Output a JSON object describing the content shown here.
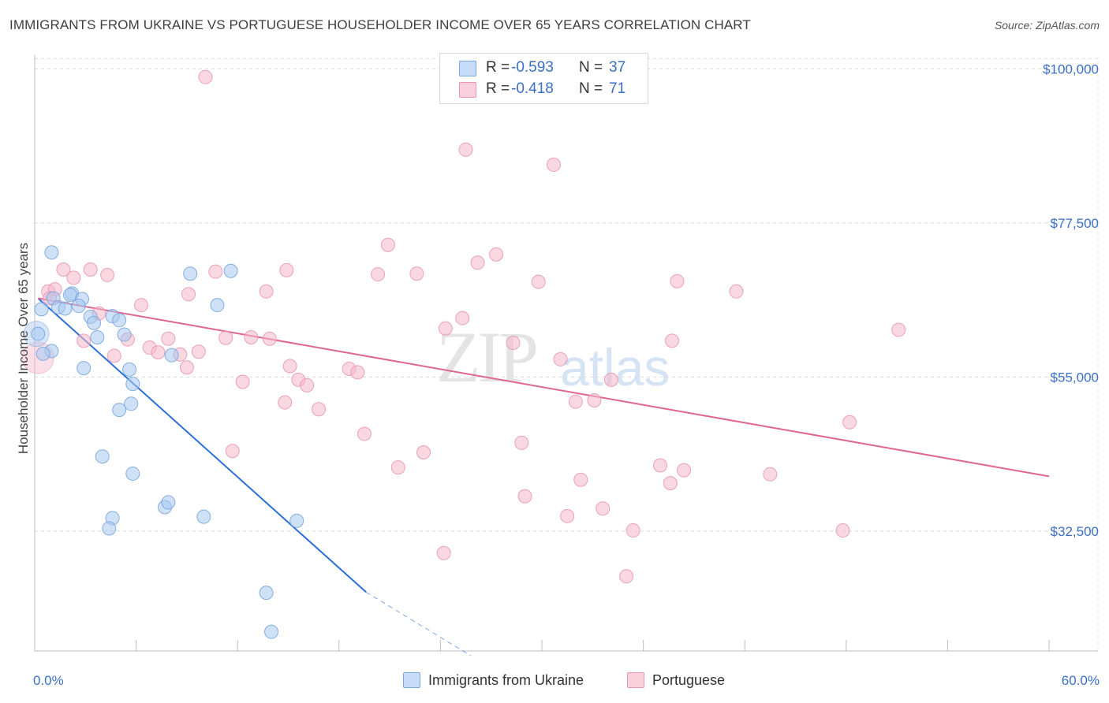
{
  "header": {
    "title": "IMMIGRANTS FROM UKRAINE VS PORTUGUESE HOUSEHOLDER INCOME OVER 65 YEARS CORRELATION CHART",
    "source": "Source: ZipAtlas.com"
  },
  "watermark": {
    "zip": "ZIP",
    "atlas": "atlas"
  },
  "legend": {
    "rows": [
      {
        "r_label": "R =",
        "r_value": "-0.593",
        "n_label": "N =",
        "n_value": "37",
        "color": "#a8c8f0"
      },
      {
        "r_label": "R =",
        "r_value": "-0.418",
        "n_label": "N =",
        "n_value": "71",
        "color": "#f5b8cb"
      }
    ]
  },
  "bottom_legend": {
    "series1": "Immigrants from Ukraine",
    "series2": "Portuguese"
  },
  "chart_data": {
    "type": "scatter",
    "title": "IMMIGRANTS FROM UKRAINE VS PORTUGUESE HOUSEHOLDER INCOME OVER 65 YEARS CORRELATION CHART",
    "xlabel": "",
    "ylabel": "Householder Income Over 65 years",
    "xlim": [
      0,
      60
    ],
    "ylim": [
      15000,
      102000
    ],
    "x_tick_labels": [
      "0.0%",
      "60.0%"
    ],
    "y_ticks": [
      32500,
      55000,
      77500,
      100000
    ],
    "y_tick_labels": [
      "$32,500",
      "$55,000",
      "$77,500",
      "$100,000"
    ],
    "grid": true,
    "series": [
      {
        "name": "Immigrants from Ukraine",
        "color": "#a8c8f0",
        "stroke": "#7aa6de",
        "trend_color": "#2a6fd6",
        "trend": {
          "x0": 0.2,
          "y0": 66500,
          "x1": 19.6,
          "y1": 23600,
          "dash_x1": 25.8,
          "dash_y1": 14300
        },
        "points": [
          {
            "x": 1.0,
            "y": 73200
          },
          {
            "x": 0.4,
            "y": 64900
          },
          {
            "x": 0.2,
            "y": 61300
          },
          {
            "x": 1.1,
            "y": 66500
          },
          {
            "x": 1.4,
            "y": 65200
          },
          {
            "x": 1.8,
            "y": 65000
          },
          {
            "x": 2.2,
            "y": 67200
          },
          {
            "x": 2.1,
            "y": 67000
          },
          {
            "x": 2.8,
            "y": 66400
          },
          {
            "x": 2.6,
            "y": 65400
          },
          {
            "x": 3.3,
            "y": 63800
          },
          {
            "x": 3.5,
            "y": 62900
          },
          {
            "x": 3.7,
            "y": 60800
          },
          {
            "x": 1.0,
            "y": 58800
          },
          {
            "x": 2.9,
            "y": 56300
          },
          {
            "x": 4.6,
            "y": 63900
          },
          {
            "x": 5.0,
            "y": 63300
          },
          {
            "x": 5.3,
            "y": 61200
          },
          {
            "x": 5.6,
            "y": 56100
          },
          {
            "x": 5.8,
            "y": 54000
          },
          {
            "x": 5.7,
            "y": 51100
          },
          {
            "x": 5.0,
            "y": 50200
          },
          {
            "x": 8.1,
            "y": 58200
          },
          {
            "x": 9.2,
            "y": 70100
          },
          {
            "x": 10.8,
            "y": 65500
          },
          {
            "x": 11.6,
            "y": 70500
          },
          {
            "x": 4.0,
            "y": 43400
          },
          {
            "x": 5.8,
            "y": 40900
          },
          {
            "x": 7.7,
            "y": 36000
          },
          {
            "x": 7.9,
            "y": 36700
          },
          {
            "x": 4.6,
            "y": 34400
          },
          {
            "x": 4.4,
            "y": 32900
          },
          {
            "x": 10.0,
            "y": 34600
          },
          {
            "x": 15.5,
            "y": 34000
          },
          {
            "x": 13.7,
            "y": 23500
          },
          {
            "x": 14.0,
            "y": 17800
          },
          {
            "x": 0.5,
            "y": 58400
          }
        ]
      },
      {
        "name": "Portuguese",
        "color": "#f5b8cb",
        "stroke": "#e998b4",
        "trend_color": "#e0668f",
        "trend": {
          "x0": 0.2,
          "y0": 66500,
          "x1": 60.0,
          "y1": 40500
        },
        "points": [
          {
            "x": 10.1,
            "y": 98800
          },
          {
            "x": 25.5,
            "y": 88200
          },
          {
            "x": 30.7,
            "y": 86000
          },
          {
            "x": 1.7,
            "y": 70700
          },
          {
            "x": 3.3,
            "y": 70700
          },
          {
            "x": 2.3,
            "y": 69500
          },
          {
            "x": 4.3,
            "y": 69900
          },
          {
            "x": 0.8,
            "y": 67500
          },
          {
            "x": 1.2,
            "y": 67800
          },
          {
            "x": 0.9,
            "y": 66500
          },
          {
            "x": 6.3,
            "y": 65500
          },
          {
            "x": 9.1,
            "y": 67100
          },
          {
            "x": 10.7,
            "y": 70400
          },
          {
            "x": 13.7,
            "y": 67500
          },
          {
            "x": 14.9,
            "y": 70600
          },
          {
            "x": 20.3,
            "y": 70000
          },
          {
            "x": 20.9,
            "y": 74300
          },
          {
            "x": 22.6,
            "y": 70100
          },
          {
            "x": 26.2,
            "y": 71700
          },
          {
            "x": 27.3,
            "y": 72900
          },
          {
            "x": 29.8,
            "y": 68900
          },
          {
            "x": 38.0,
            "y": 69000
          },
          {
            "x": 41.5,
            "y": 67500
          },
          {
            "x": 3.8,
            "y": 64300
          },
          {
            "x": 2.9,
            "y": 60300
          },
          {
            "x": 4.7,
            "y": 58100
          },
          {
            "x": 5.5,
            "y": 60500
          },
          {
            "x": 6.8,
            "y": 59300
          },
          {
            "x": 7.3,
            "y": 58600
          },
          {
            "x": 7.9,
            "y": 60600
          },
          {
            "x": 8.6,
            "y": 58300
          },
          {
            "x": 9.0,
            "y": 56400
          },
          {
            "x": 9.7,
            "y": 58700
          },
          {
            "x": 11.3,
            "y": 60700
          },
          {
            "x": 12.8,
            "y": 60800
          },
          {
            "x": 13.9,
            "y": 60600
          },
          {
            "x": 12.3,
            "y": 54300
          },
          {
            "x": 15.1,
            "y": 56600
          },
          {
            "x": 15.6,
            "y": 54600
          },
          {
            "x": 16.1,
            "y": 53800
          },
          {
            "x": 18.6,
            "y": 56200
          },
          {
            "x": 19.1,
            "y": 55700
          },
          {
            "x": 24.3,
            "y": 62100
          },
          {
            "x": 25.3,
            "y": 63600
          },
          {
            "x": 28.3,
            "y": 60000
          },
          {
            "x": 31.1,
            "y": 57600
          },
          {
            "x": 32.0,
            "y": 51400
          },
          {
            "x": 33.1,
            "y": 51600
          },
          {
            "x": 34.1,
            "y": 54600
          },
          {
            "x": 37.7,
            "y": 60300
          },
          {
            "x": 51.1,
            "y": 61900
          },
          {
            "x": 14.8,
            "y": 51300
          },
          {
            "x": 16.8,
            "y": 50300
          },
          {
            "x": 19.5,
            "y": 46700
          },
          {
            "x": 11.7,
            "y": 44200
          },
          {
            "x": 23.0,
            "y": 44000
          },
          {
            "x": 21.5,
            "y": 41800
          },
          {
            "x": 28.8,
            "y": 45400
          },
          {
            "x": 29.0,
            "y": 37600
          },
          {
            "x": 31.5,
            "y": 34700
          },
          {
            "x": 32.3,
            "y": 40000
          },
          {
            "x": 33.6,
            "y": 35800
          },
          {
            "x": 35.4,
            "y": 32600
          },
          {
            "x": 37.0,
            "y": 42100
          },
          {
            "x": 37.6,
            "y": 39500
          },
          {
            "x": 38.4,
            "y": 41400
          },
          {
            "x": 43.5,
            "y": 40800
          },
          {
            "x": 48.2,
            "y": 48400
          },
          {
            "x": 47.8,
            "y": 32600
          },
          {
            "x": 24.2,
            "y": 29300
          },
          {
            "x": 35.0,
            "y": 25900
          }
        ]
      }
    ]
  }
}
